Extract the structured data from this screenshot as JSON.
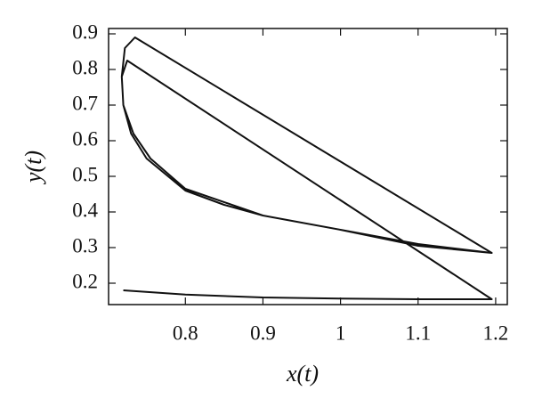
{
  "chart_data": {
    "type": "line",
    "x_label": "x(t)",
    "y_label": "y(t)",
    "xlim": [
      0.701,
      1.215
    ],
    "ylim": [
      0.14,
      0.915
    ],
    "xticks": [
      0.8,
      0.9,
      1,
      1.1,
      1.2
    ],
    "yticks": [
      0.2,
      0.3,
      0.4,
      0.5,
      0.6,
      0.7,
      0.8,
      0.9
    ],
    "series": [
      {
        "color": "#111111",
        "x": [
          0.72,
          0.8,
          0.9,
          1.0,
          1.1,
          1.195,
          0.725,
          0.718,
          0.72,
          0.73,
          0.75,
          0.8,
          0.85,
          0.9,
          1.0,
          1.1,
          1.195,
          0.735,
          0.722,
          0.718,
          0.72,
          0.733,
          0.755,
          0.8,
          0.9,
          1.0,
          1.1,
          1.195
        ],
        "values": [
          0.18,
          0.168,
          0.16,
          0.157,
          0.155,
          0.155,
          0.825,
          0.78,
          0.7,
          0.62,
          0.55,
          0.46,
          0.42,
          0.39,
          0.35,
          0.31,
          0.285,
          0.89,
          0.86,
          0.78,
          0.7,
          0.62,
          0.55,
          0.465,
          0.39,
          0.35,
          0.305,
          0.285
        ]
      }
    ]
  }
}
